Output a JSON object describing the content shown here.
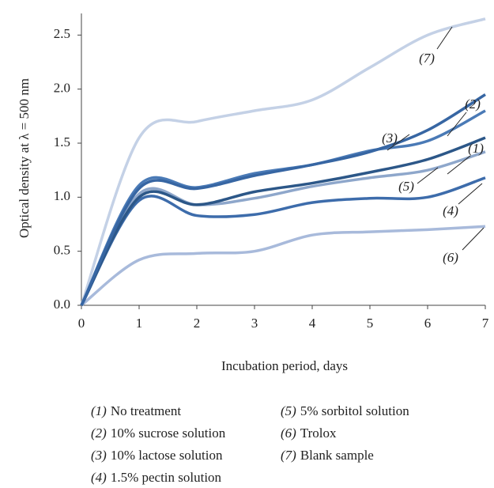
{
  "chart_data": {
    "type": "line",
    "x_label": "Incubation period, days",
    "y_label": "Optical density at λ = 500 nm",
    "x": [
      0,
      1,
      2,
      3,
      4,
      5,
      6,
      7
    ],
    "xlim": [
      0,
      7
    ],
    "xticks": [
      0,
      1,
      2,
      3,
      4,
      5,
      6,
      7
    ],
    "ylim": [
      0,
      2.7
    ],
    "yticks": [
      {
        "value": 0,
        "label": "0.0"
      },
      {
        "value": 0.5,
        "label": "0.5"
      },
      {
        "value": 1,
        "label": "1.0"
      },
      {
        "value": 1.5,
        "label": "1.5"
      },
      {
        "value": 2,
        "label": "2.0"
      },
      {
        "value": 2.5,
        "label": "2.5"
      }
    ],
    "series": [
      {
        "label": "(1)",
        "name": "No treatment",
        "color": "#2c5788",
        "values": [
          0,
          1.0,
          0.93,
          1.05,
          1.13,
          1.23,
          1.35,
          1.55
        ]
      },
      {
        "label": "(2)",
        "name": "10% sucrose solution",
        "color": "#3766a3",
        "values": [
          0,
          1.08,
          1.08,
          1.2,
          1.3,
          1.42,
          1.62,
          1.95
        ]
      },
      {
        "label": "(3)",
        "name": "10% lactose solution",
        "color": "#4a7ab6",
        "values": [
          0,
          1.11,
          1.09,
          1.22,
          1.3,
          1.43,
          1.52,
          1.8
        ]
      },
      {
        "label": "(4)",
        "name": "1.5% pectin solution",
        "color": "#3d6cab",
        "values": [
          0,
          0.97,
          0.83,
          0.84,
          0.95,
          0.99,
          1.0,
          1.18
        ]
      },
      {
        "label": "(5)",
        "name": "5% sorbitol solution",
        "color": "#8ea7cb",
        "values": [
          0,
          1.03,
          0.93,
          0.99,
          1.1,
          1.18,
          1.25,
          1.42
        ]
      },
      {
        "label": "(6)",
        "name": "Trolox",
        "color": "#a8badb",
        "values": [
          0,
          0.42,
          0.48,
          0.5,
          0.65,
          0.68,
          0.7,
          0.73
        ]
      },
      {
        "label": "(7)",
        "name": "Blank sample",
        "color": "#c4d1e6",
        "values": [
          0,
          1.55,
          1.7,
          1.8,
          1.9,
          2.2,
          2.5,
          2.65
        ]
      }
    ]
  }
}
